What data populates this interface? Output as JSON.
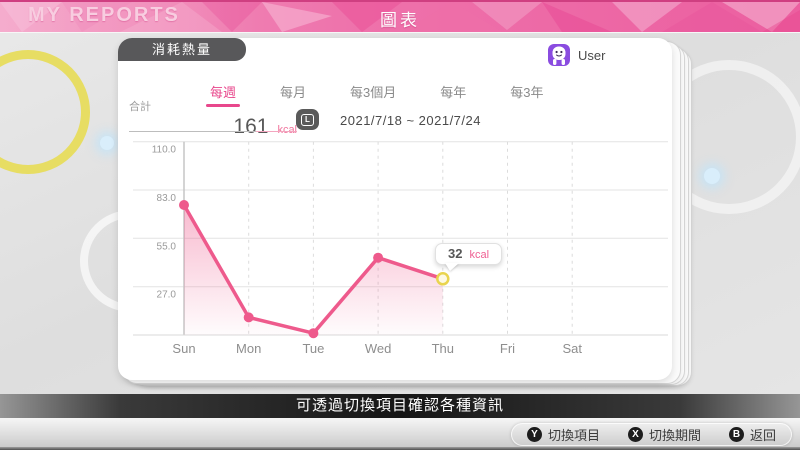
{
  "top_bar": {
    "app_title": "MY REPORTS",
    "page_title": "圖表"
  },
  "card": {
    "metric_tab": "消耗熱量",
    "user": {
      "name": "User",
      "avatar_color": "#8a4ce0"
    },
    "period_tabs": [
      {
        "label": "每週",
        "selected": true
      },
      {
        "label": "每月",
        "selected": false
      },
      {
        "label": "每3個月",
        "selected": false
      },
      {
        "label": "每年",
        "selected": false
      },
      {
        "label": "每3年",
        "selected": false
      }
    ],
    "total": {
      "label": "合計",
      "value": "161",
      "unit": "kcal"
    },
    "l_button_label": "L",
    "date_range": "2021/7/18 ~ 2021/7/24"
  },
  "chart_data": {
    "type": "line",
    "title": "消耗熱量 每週",
    "categories": [
      "Sun",
      "Mon",
      "Tue",
      "Wed",
      "Thu",
      "Fri",
      "Sat"
    ],
    "values": [
      74,
      10,
      1,
      44,
      32,
      null,
      null
    ],
    "unit": "kcal",
    "ylim": [
      0,
      110
    ],
    "gridlines": [
      {
        "value": 110,
        "label": "110.0"
      },
      {
        "value": 82.5,
        "label": "83.0"
      },
      {
        "value": 55,
        "label": "55.0"
      },
      {
        "value": 27.5,
        "label": "27.0"
      }
    ],
    "selected_index": 4,
    "tooltip": {
      "value": "32",
      "unit": "kcal"
    },
    "line_color": "#ee5a8c",
    "area_top_opacity": 0.42,
    "selected_point_color": "#e9d44e",
    "legend": "none",
    "grid": true
  },
  "message_bar": "可透過切換項目確認各種資訊",
  "controls": [
    {
      "button": "Y",
      "label": "切換項目"
    },
    {
      "button": "X",
      "label": "切換期間"
    },
    {
      "button": "B",
      "label": "返回"
    }
  ]
}
